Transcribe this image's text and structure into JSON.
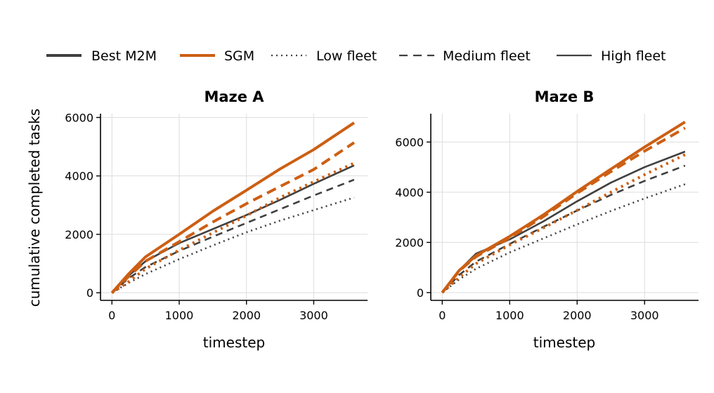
{
  "legend": {
    "entries": [
      {
        "label": "Best M2M",
        "color": "#404040",
        "style": "solid",
        "width": 4
      },
      {
        "label": "SGM",
        "color": "#cc5f14",
        "style": "solid",
        "width": 4
      },
      {
        "label": "Low fleet",
        "color": "#404040",
        "style": "dotted",
        "width": 2.2
      },
      {
        "label": "Medium fleet",
        "color": "#404040",
        "style": "dashed",
        "width": 2.2
      },
      {
        "label": "High fleet",
        "color": "#404040",
        "style": "solid",
        "width": 2.2
      }
    ]
  },
  "ylabel": "cumulative completed tasks",
  "chart_data": [
    {
      "type": "line",
      "title": "Maze A",
      "xlabel": "timestep",
      "xlim": [
        -170,
        3800
      ],
      "ylim": [
        -260,
        6130
      ],
      "xticks": [
        0,
        1000,
        2000,
        3000
      ],
      "yticks": [
        0,
        2000,
        4000,
        6000
      ],
      "grid": true,
      "x": [
        0,
        250,
        500,
        1000,
        1500,
        2000,
        2500,
        3000,
        3600
      ],
      "series": [
        {
          "name": "Best M2M",
          "fleet": "High fleet",
          "color": "#404040",
          "style": "solid",
          "width": 2.6,
          "values": [
            0,
            590,
            1080,
            1700,
            2180,
            2660,
            3180,
            3730,
            4360
          ]
        },
        {
          "name": "Best M2M",
          "fleet": "Medium fleet",
          "color": "#404040",
          "style": "dashed",
          "width": 2.6,
          "values": [
            0,
            500,
            880,
            1430,
            1920,
            2390,
            2860,
            3330,
            3870
          ]
        },
        {
          "name": "Best M2M",
          "fleet": "Low fleet",
          "color": "#404040",
          "style": "dotted",
          "width": 2.6,
          "values": [
            0,
            340,
            640,
            1150,
            1620,
            2070,
            2470,
            2830,
            3260
          ]
        },
        {
          "name": "SGM",
          "fleet": "High fleet",
          "color": "#cc5f14",
          "style": "solid",
          "width": 4,
          "values": [
            0,
            650,
            1230,
            2000,
            2790,
            3510,
            4240,
            4900,
            5820
          ]
        },
        {
          "name": "SGM",
          "fleet": "Medium fleet",
          "color": "#cc5f14",
          "style": "dashed",
          "width": 4,
          "values": [
            0,
            560,
            1080,
            1750,
            2420,
            3050,
            3640,
            4220,
            5140
          ]
        },
        {
          "name": "SGM",
          "fleet": "Low fleet",
          "color": "#cc5f14",
          "style": "dotted",
          "width": 4,
          "values": [
            0,
            380,
            820,
            1460,
            2050,
            2640,
            3260,
            3800,
            4440
          ]
        }
      ]
    },
    {
      "type": "line",
      "title": "Maze B",
      "xlabel": "timestep",
      "xlim": [
        -170,
        3800
      ],
      "ylim": [
        -310,
        7130
      ],
      "xticks": [
        0,
        1000,
        2000,
        3000
      ],
      "yticks": [
        0,
        2000,
        4000,
        6000
      ],
      "grid": true,
      "x": [
        0,
        250,
        500,
        1000,
        1500,
        2000,
        2500,
        3000,
        3600
      ],
      "series": [
        {
          "name": "Best M2M",
          "fleet": "High fleet",
          "color": "#404040",
          "style": "solid",
          "width": 2.6,
          "values": [
            0,
            880,
            1550,
            2120,
            2840,
            3640,
            4380,
            5000,
            5620
          ]
        },
        {
          "name": "Best M2M",
          "fleet": "Medium fleet",
          "color": "#404040",
          "style": "dashed",
          "width": 2.6,
          "values": [
            0,
            700,
            1230,
            1940,
            2620,
            3270,
            3890,
            4450,
            5060
          ]
        },
        {
          "name": "Best M2M",
          "fleet": "Low fleet",
          "color": "#404040",
          "style": "dotted",
          "width": 2.6,
          "values": [
            0,
            520,
            950,
            1600,
            2160,
            2720,
            3250,
            3750,
            4320
          ]
        },
        {
          "name": "SGM",
          "fleet": "High fleet",
          "color": "#cc5f14",
          "style": "solid",
          "width": 4,
          "values": [
            0,
            880,
            1470,
            2240,
            3100,
            4030,
            4920,
            5800,
            6800
          ]
        },
        {
          "name": "SGM",
          "fleet": "Medium fleet",
          "color": "#cc5f14",
          "style": "dashed",
          "width": 4,
          "values": [
            0,
            860,
            1430,
            2180,
            3030,
            3960,
            4820,
            5640,
            6560
          ]
        },
        {
          "name": "SGM",
          "fleet": "Low fleet",
          "color": "#cc5f14",
          "style": "dotted",
          "width": 4,
          "values": [
            0,
            600,
            1150,
            1900,
            2580,
            3280,
            4000,
            4700,
            5500
          ]
        }
      ]
    }
  ]
}
